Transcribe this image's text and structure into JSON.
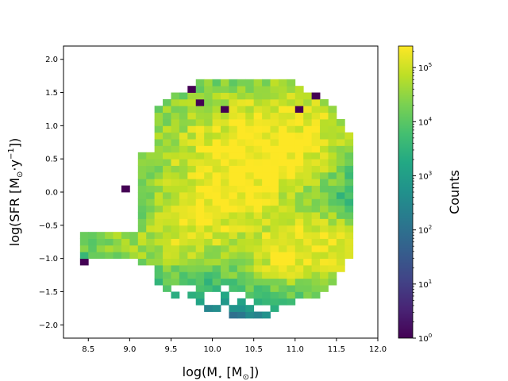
{
  "chart_data": {
    "type": "heatmap",
    "title": "",
    "xlabel_main": "log(M",
    "xlabel_sub": "⋆",
    "xlabel_unit": " [M",
    "xlabel_unit_sub": "⊙",
    "xlabel_end": "])",
    "ylabel_main": "log(SFR [M",
    "ylabel_sub": "⊙",
    "ylabel_mid": "·y",
    "ylabel_sup": "−1",
    "ylabel_end": "])",
    "xlim": [
      8.2,
      12.0
    ],
    "ylim": [
      -2.2,
      2.2
    ],
    "x_ticks": [
      "8.5",
      "9.0",
      "9.5",
      "10.0",
      "10.5",
      "11.0",
      "11.5",
      "12.0"
    ],
    "y_ticks": [
      "−2.0",
      "−1.5",
      "−1.0",
      "−0.5",
      "0.0",
      "0.5",
      "1.0",
      "1.5",
      "2.0"
    ],
    "colorbar": {
      "label": "Counts",
      "scale": "log",
      "min": 1,
      "max": 250000,
      "ticks": [
        {
          "base": "10",
          "exp": "0"
        },
        {
          "base": "10",
          "exp": "1"
        },
        {
          "base": "10",
          "exp": "2"
        },
        {
          "base": "10",
          "exp": "3"
        },
        {
          "base": "10",
          "exp": "4"
        },
        {
          "base": "10",
          "exp": "5"
        }
      ],
      "colormap": "viridis"
    },
    "bin_width_x": 0.1,
    "bin_height_y": 0.1,
    "bins_note": "",
    "cells": []
  }
}
